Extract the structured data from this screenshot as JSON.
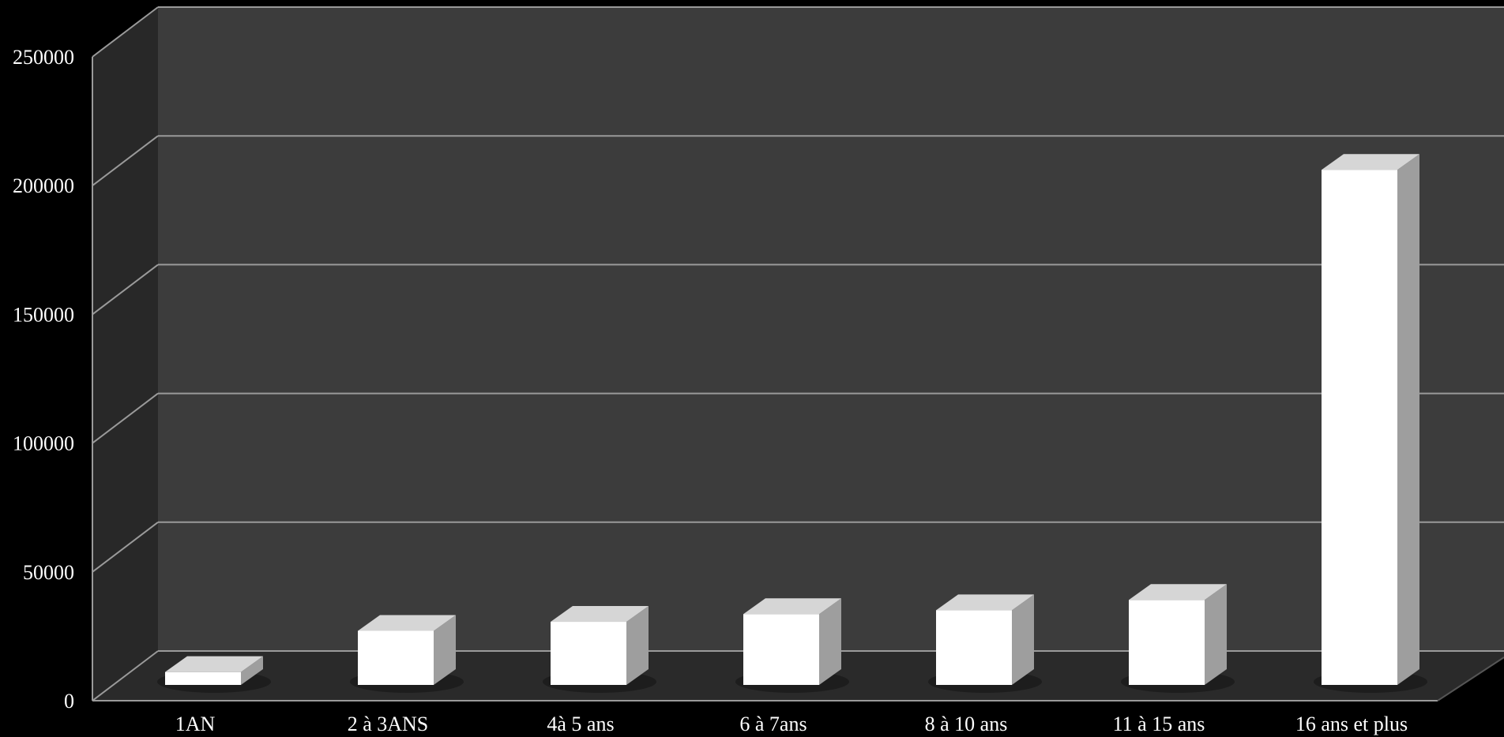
{
  "chart_data": {
    "type": "bar",
    "categories": [
      "1AN",
      "2 à 3ANS",
      "4à 5 ans",
      "6 à 7ans",
      "8 à 10 ans",
      "11 à 15 ans",
      "16 ans et plus"
    ],
    "values": [
      5000,
      21000,
      24500,
      27500,
      29000,
      33000,
      200000
    ],
    "ylim": [
      0,
      250000
    ],
    "yticks": [
      0,
      50000,
      100000,
      150000,
      200000,
      250000
    ],
    "ytick_labels": [
      "0",
      "50000",
      "100000",
      "150000",
      "200000",
      "250000"
    ],
    "grid": true,
    "style": "3d-column",
    "colors": {
      "background": "#000000",
      "back_wall": "#3c3c3c",
      "side_wall": "#282828",
      "floor": "#2a2a2a",
      "gridline": "#9a9a9a",
      "bar_front": "#ffffff",
      "bar_top": "#d6d6d6",
      "bar_side": "#9e9e9e",
      "text": "#ffffff"
    }
  }
}
